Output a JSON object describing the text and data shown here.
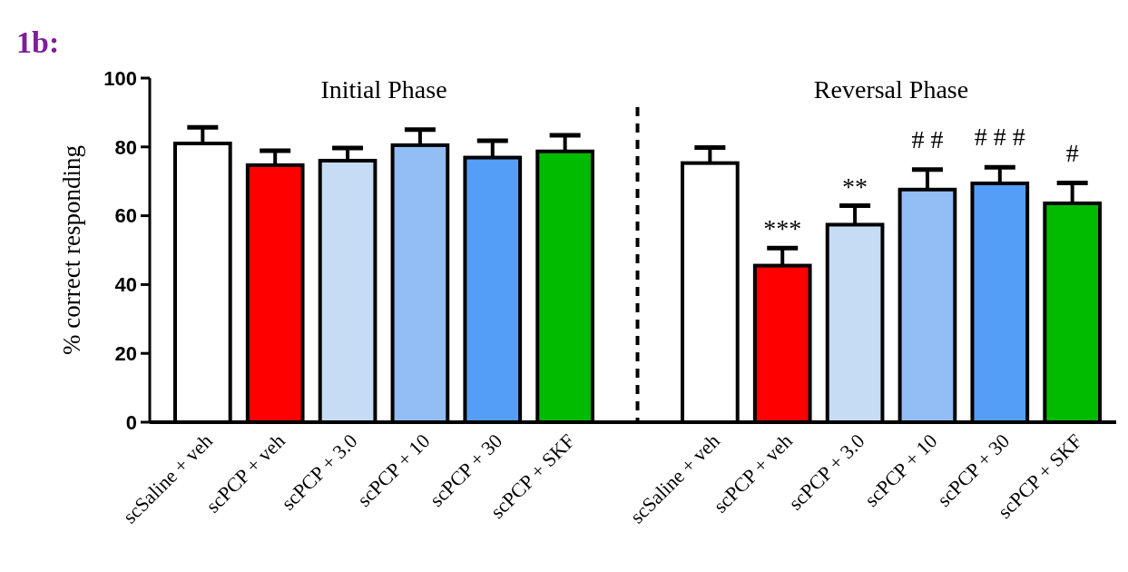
{
  "chart_data": {
    "type": "bar",
    "title": "1b:",
    "ylabel": "% correct responding",
    "categories": [
      "scSaline + veh",
      "scPCP + veh",
      "scPCP + 3.0",
      "scPCP + 10",
      "scPCP + 30",
      "scPCP + SKF",
      null,
      "scSaline + veh",
      "scPCP + veh",
      "scPCP + 3.0",
      "scPCP + 10",
      "scPCP + 30",
      "scPCP + SKF"
    ],
    "values": [
      81.0,
      74.7,
      76.0,
      80.5,
      76.9,
      78.7,
      null,
      75.3,
      45.5,
      57.4,
      67.6,
      69.4,
      63.6
    ],
    "errors": [
      [
        81.0,
        85.7
      ],
      [
        74.7,
        78.9
      ],
      [
        76.0,
        79.7
      ],
      [
        80.5,
        85.0
      ],
      [
        76.9,
        81.8
      ],
      [
        78.7,
        83.4
      ],
      null,
      [
        75.3,
        79.8
      ],
      [
        45.5,
        50.6
      ],
      [
        57.4,
        62.9
      ],
      [
        67.6,
        73.4
      ],
      [
        69.4,
        74.1
      ],
      [
        63.6,
        69.5
      ]
    ],
    "colors": [
      "#ffffff",
      "#ff0000",
      "#c6dcf5",
      "#92bdf5",
      "#559ef7",
      "#00bb00",
      null,
      "#ffffff",
      "#ff0000",
      "#c6dcf5",
      "#92bdf5",
      "#559ef7",
      "#00bb00"
    ],
    "ylim": [
      0,
      100
    ],
    "yticks": [
      0,
      20,
      40,
      60,
      80,
      100
    ],
    "grid": false,
    "annotations": [
      "Initial Phase",
      "Reversal Phase",
      "***",
      "**",
      "# #",
      "# # #",
      "#"
    ]
  }
}
